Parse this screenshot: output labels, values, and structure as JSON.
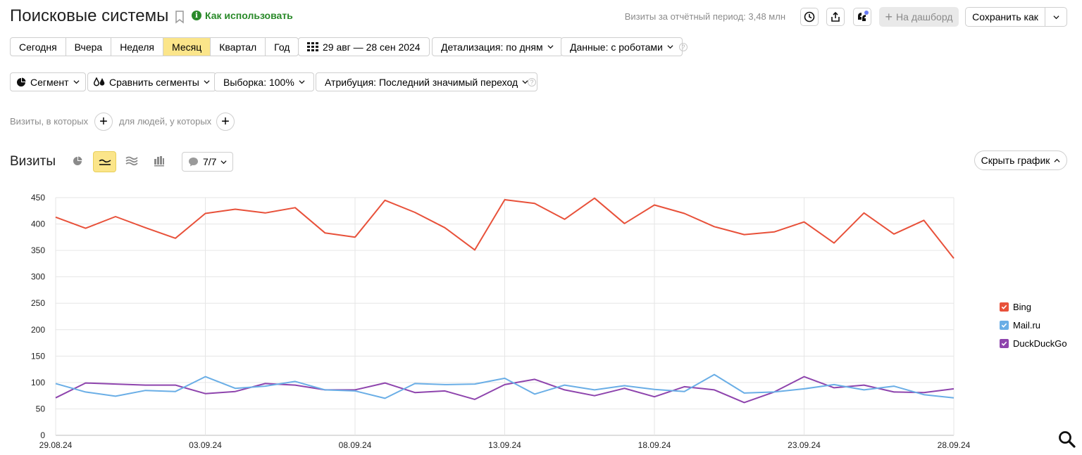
{
  "header": {
    "title": "Поисковые системы",
    "howto_label": "Как использовать",
    "visits_total": "Визиты за отчётный период: 3,48 млн",
    "dashboard_label": "На дашборд",
    "save_label": "Сохранить как"
  },
  "periods": {
    "items": [
      "Сегодня",
      "Вчера",
      "Неделя",
      "Месяц",
      "Квартал",
      "Год"
    ],
    "active": "Месяц"
  },
  "toolbar": {
    "date_range": "29 авг — 28 сен 2024",
    "detail": "Детализация: по дням",
    "data_mode": "Данные: с роботами",
    "segment": "Сегмент",
    "compare": "Сравнить сегменты",
    "sample": "Выборка: 100%",
    "attribution": "Атрибуция: Последний значимый переход"
  },
  "filters": {
    "visits_where": "Визиты, в которых",
    "people_where": "для людей, у которых"
  },
  "chart_panel": {
    "title": "Визиты",
    "series_count": "7/7",
    "hide_label": "Скрыть график"
  },
  "chart_data": {
    "type": "line",
    "x": [
      "29.08.24",
      "30.08.24",
      "31.08.24",
      "01.09.24",
      "02.09.24",
      "03.09.24",
      "04.09.24",
      "05.09.24",
      "06.09.24",
      "07.09.24",
      "08.09.24",
      "09.09.24",
      "10.09.24",
      "11.09.24",
      "12.09.24",
      "13.09.24",
      "14.09.24",
      "15.09.24",
      "16.09.24",
      "17.09.24",
      "18.09.24",
      "19.09.24",
      "20.09.24",
      "21.09.24",
      "22.09.24",
      "23.09.24",
      "24.09.24",
      "25.09.24",
      "26.09.24",
      "27.09.24",
      "28.09.24"
    ],
    "x_tick_labels": [
      "29.08.24",
      "03.09.24",
      "08.09.24",
      "13.09.24",
      "18.09.24",
      "23.09.24",
      "28.09.24"
    ],
    "weekend_tick_labels": [
      "08.09.24",
      "28.09.24"
    ],
    "ylim": [
      0,
      450
    ],
    "y_ticks": [
      0,
      50,
      100,
      150,
      200,
      250,
      300,
      350,
      400,
      450
    ],
    "grid": true,
    "legend_position": "right",
    "series": [
      {
        "name": "Bing",
        "color": "#e8513a",
        "values": [
          413,
          392,
          414,
          393,
          373,
          420,
          428,
          421,
          431,
          383,
          375,
          445,
          422,
          393,
          351,
          446,
          439,
          409,
          449,
          401,
          436,
          420,
          395,
          380,
          385,
          404,
          364,
          421,
          381,
          407,
          335
        ]
      },
      {
        "name": "Mail.ru",
        "color": "#6aaee6",
        "values": [
          98,
          82,
          74,
          85,
          83,
          111,
          89,
          93,
          102,
          86,
          84,
          70,
          98,
          96,
          97,
          108,
          78,
          95,
          86,
          94,
          87,
          83,
          115,
          80,
          82,
          88,
          96,
          86,
          93,
          77,
          71
        ]
      },
      {
        "name": "DuckDuckGo",
        "color": "#8e44ad",
        "values": [
          71,
          99,
          97,
          95,
          95,
          79,
          83,
          98,
          95,
          86,
          86,
          99,
          81,
          84,
          68,
          96,
          106,
          86,
          75,
          89,
          73,
          92,
          86,
          62,
          82,
          111,
          90,
          95,
          82,
          81,
          88
        ]
      }
    ]
  },
  "colors": {
    "accent_yellow": "#fbe58a",
    "help_green": "#2a8a2a",
    "weekend_red": "#d42020"
  },
  "icons": [
    "bookmark-icon",
    "info-icon",
    "history-icon",
    "share-icon",
    "ai-assistant-icon",
    "plus-icon",
    "calendar-grid-icon",
    "chevron-down-icon",
    "help-icon",
    "pie-segment-icon",
    "compare-segments-icon",
    "pie-chart-icon",
    "line-chart-icon",
    "area-chart-icon",
    "bar-chart-icon",
    "comment-icon",
    "chevron-up-icon",
    "search-icon",
    "check-icon"
  ]
}
